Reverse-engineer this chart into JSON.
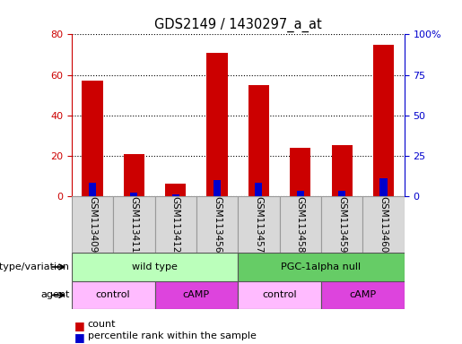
{
  "title": "GDS2149 / 1430297_a_at",
  "samples": [
    "GSM113409",
    "GSM113411",
    "GSM113412",
    "GSM113456",
    "GSM113457",
    "GSM113458",
    "GSM113459",
    "GSM113460"
  ],
  "counts": [
    57,
    21,
    6,
    71,
    55,
    24,
    25,
    75
  ],
  "percentiles": [
    8,
    2,
    1,
    10,
    8,
    3,
    3,
    11
  ],
  "ylim_left": [
    0,
    80
  ],
  "ylim_right": [
    0,
    100
  ],
  "yticks_left": [
    0,
    20,
    40,
    60,
    80
  ],
  "ytick_labels_right": [
    "0",
    "25",
    "50",
    "75",
    "100%"
  ],
  "bar_color_count": "#cc0000",
  "bar_color_pct": "#0000cc",
  "bar_width": 0.5,
  "genotype_groups": [
    {
      "label": "wild type",
      "start": 0,
      "end": 4,
      "color": "#bbffbb"
    },
    {
      "label": "PGC-1alpha null",
      "start": 4,
      "end": 8,
      "color": "#66cc66"
    }
  ],
  "agent_groups": [
    {
      "label": "control",
      "start": 0,
      "end": 2,
      "color": "#ffbbff"
    },
    {
      "label": "cAMP",
      "start": 2,
      "end": 4,
      "color": "#dd44dd"
    },
    {
      "label": "control",
      "start": 4,
      "end": 6,
      "color": "#ffbbff"
    },
    {
      "label": "cAMP",
      "start": 6,
      "end": 8,
      "color": "#dd44dd"
    }
  ],
  "legend_count_label": "count",
  "legend_pct_label": "percentile rank within the sample",
  "genotype_label": "genotype/variation",
  "agent_label": "agent",
  "bg_color": "#ffffff",
  "left_axis_color": "#cc0000",
  "right_axis_color": "#0000cc"
}
